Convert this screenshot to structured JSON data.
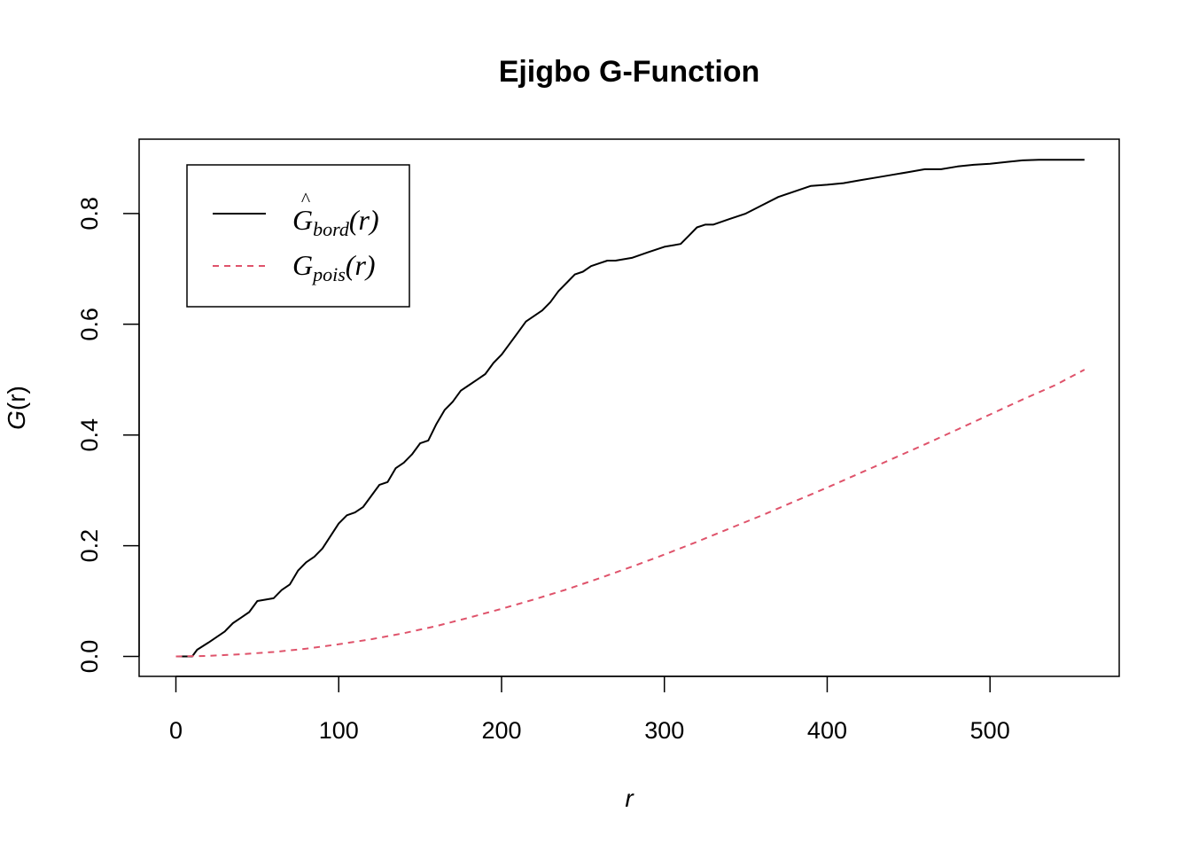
{
  "chart_data": {
    "type": "line",
    "title": "Ejigbo G-Function",
    "xlabel": "r",
    "ylabel_main": "G",
    "ylabel_arg": "(r)",
    "xlim": [
      0,
      560
    ],
    "ylim": [
      0,
      0.9
    ],
    "xticks": [
      0,
      100,
      200,
      300,
      400,
      500
    ],
    "xtick_labels": [
      "0",
      "100",
      "200",
      "300",
      "400",
      "500"
    ],
    "yticks": [
      0,
      0.2,
      0.4,
      0.6,
      0.8
    ],
    "ytick_labels": [
      "0.0",
      "0.2",
      "0.4",
      "0.6",
      "0.8"
    ],
    "legend_position": "top-left",
    "series": [
      {
        "legend_main": "G",
        "legend_hat": "^",
        "legend_sub": "bord",
        "legend_arg": "(r)",
        "color": "#000000",
        "style": "solid",
        "x": [
          0,
          5,
          10,
          13,
          20,
          30,
          35,
          40,
          45,
          50,
          60,
          65,
          70,
          75,
          80,
          85,
          90,
          100,
          105,
          110,
          115,
          120,
          125,
          130,
          135,
          140,
          145,
          150,
          155,
          160,
          165,
          170,
          175,
          180,
          185,
          190,
          195,
          200,
          205,
          210,
          215,
          220,
          225,
          230,
          235,
          240,
          245,
          250,
          255,
          260,
          265,
          270,
          280,
          290,
          300,
          310,
          315,
          320,
          325,
          330,
          340,
          350,
          360,
          370,
          380,
          390,
          400,
          410,
          420,
          430,
          440,
          450,
          460,
          470,
          480,
          490,
          500,
          510,
          520,
          530,
          540,
          558
        ],
        "y": [
          0,
          0,
          0,
          0.012,
          0.025,
          0.045,
          0.06,
          0.07,
          0.08,
          0.1,
          0.105,
          0.12,
          0.13,
          0.155,
          0.17,
          0.18,
          0.195,
          0.24,
          0.255,
          0.26,
          0.27,
          0.29,
          0.31,
          0.315,
          0.34,
          0.35,
          0.365,
          0.385,
          0.39,
          0.42,
          0.445,
          0.46,
          0.48,
          0.49,
          0.5,
          0.51,
          0.53,
          0.545,
          0.565,
          0.585,
          0.605,
          0.615,
          0.625,
          0.64,
          0.66,
          0.675,
          0.69,
          0.695,
          0.705,
          0.71,
          0.715,
          0.715,
          0.72,
          0.73,
          0.74,
          0.745,
          0.76,
          0.775,
          0.78,
          0.78,
          0.79,
          0.8,
          0.815,
          0.83,
          0.84,
          0.85,
          0.852,
          0.855,
          0.86,
          0.865,
          0.87,
          0.875,
          0.88,
          0.88,
          0.885,
          0.888,
          0.89,
          0.893,
          0.896,
          0.897,
          0.897,
          0.897
        ]
      },
      {
        "legend_main": "G",
        "legend_sub": "pois",
        "legend_arg": "(r)",
        "color": "#DF536B",
        "style": "dashed",
        "x": [
          0,
          20,
          40,
          60,
          80,
          100,
          120,
          140,
          160,
          180,
          200,
          220,
          240,
          260,
          280,
          300,
          320,
          340,
          360,
          380,
          400,
          420,
          440,
          460,
          480,
          500,
          520,
          540,
          558
        ],
        "y": [
          0,
          0.001,
          0.004,
          0.008,
          0.014,
          0.022,
          0.031,
          0.042,
          0.055,
          0.07,
          0.086,
          0.103,
          0.121,
          0.141,
          0.162,
          0.184,
          0.207,
          0.231,
          0.255,
          0.28,
          0.305,
          0.331,
          0.357,
          0.383,
          0.41,
          0.437,
          0.464,
          0.49,
          0.518
        ]
      }
    ]
  }
}
